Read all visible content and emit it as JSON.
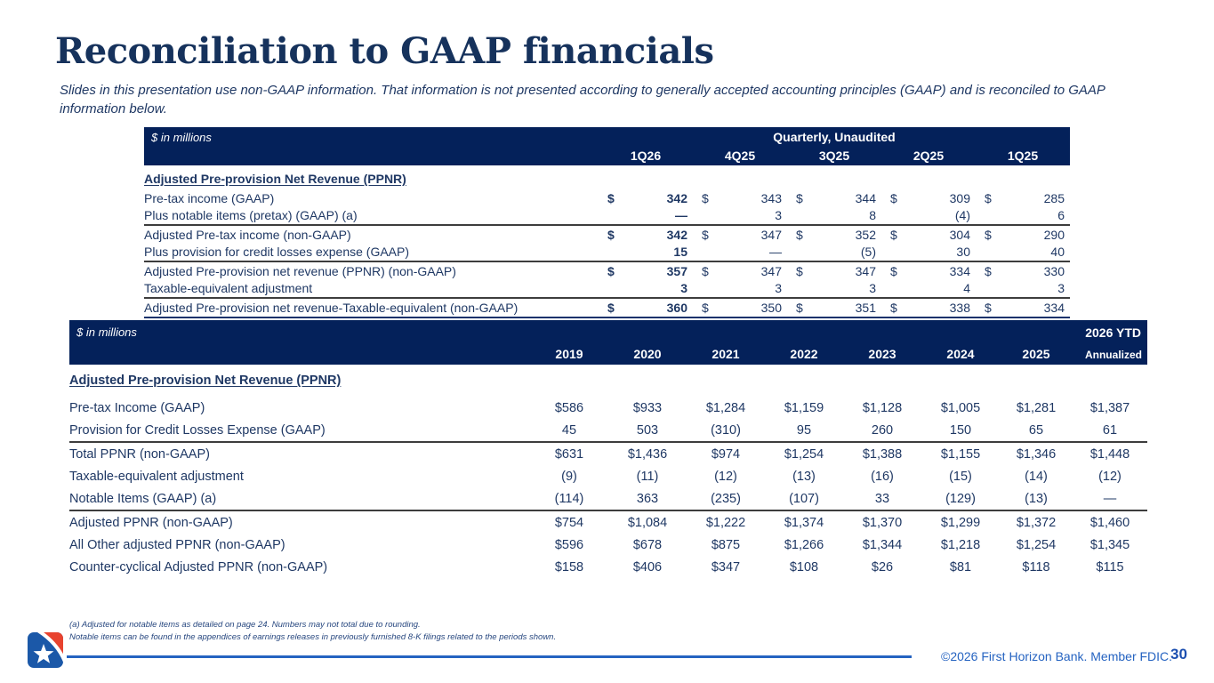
{
  "slide": {
    "title": "Reconciliation to GAAP financials",
    "subtitle": "Slides in this presentation use non-GAAP information. That information is not presented according to generally accepted accounting principles (GAAP) and is reconciled to GAAP information below."
  },
  "colors": {
    "header_navy": "#04215a",
    "body_text_navy": "#1f3864",
    "rule_dark": "#3d3d3d",
    "footer_blue": "#2563c1",
    "logo_blue": "#1b58a8",
    "logo_red": "#e8432f"
  },
  "quarterly_table": {
    "units_label": "$ in millions",
    "banner": "Quarterly, Unaudited",
    "columns": [
      "1Q26",
      "4Q25",
      "3Q25",
      "2Q25",
      "1Q25"
    ],
    "section_heading": "Adjusted Pre-provision Net Revenue (PPNR)",
    "rows": [
      {
        "label": "Pre-tax income (GAAP)",
        "dollar": true,
        "values": [
          "342",
          "343",
          "344",
          "309",
          "285"
        ],
        "rule": "none"
      },
      {
        "label": "Plus notable items (pretax) (GAAP) (a)",
        "dollar": false,
        "values": [
          "—",
          "3",
          "8",
          "(4)",
          "6"
        ],
        "rule": "thick"
      },
      {
        "label": "Adjusted Pre-tax income (non-GAAP)",
        "dollar": true,
        "values": [
          "342",
          "347",
          "352",
          "304",
          "290"
        ],
        "rule": "none"
      },
      {
        "label": "Plus provision for credit losses expense (GAAP)",
        "dollar": false,
        "values": [
          "15",
          "—",
          "(5)",
          "30",
          "40"
        ],
        "rule": "thick"
      },
      {
        "label": "Adjusted Pre-provision net revenue (PPNR) (non-GAAP)",
        "dollar": true,
        "values": [
          "357",
          "347",
          "347",
          "334",
          "330"
        ],
        "rule": "none"
      },
      {
        "label": "Taxable-equivalent adjustment",
        "dollar": false,
        "values": [
          "3",
          "3",
          "3",
          "4",
          "3"
        ],
        "rule": "thick"
      },
      {
        "label": "Adjusted Pre-provision net revenue-Taxable-equivalent (non-GAAP)",
        "dollar": true,
        "values": [
          "360",
          "350",
          "351",
          "338",
          "334"
        ],
        "rule": "navy"
      }
    ]
  },
  "annual_table": {
    "units_label": "$ in millions",
    "ytd_header_line1": "2026 YTD",
    "ytd_header_line2": "Annualized",
    "columns": [
      "2019",
      "2020",
      "2021",
      "2022",
      "2023",
      "2024",
      "2025"
    ],
    "section_heading": "Adjusted Pre-provision Net Revenue (PPNR)",
    "rows": [
      {
        "label": "Pre-tax Income (GAAP)",
        "values": [
          "$586",
          "$933",
          "$1,284",
          "$1,159",
          "$1,128",
          "$1,005",
          "$1,281",
          "$1,387"
        ],
        "rule": "none"
      },
      {
        "label": "Provision for Credit Losses Expense (GAAP)",
        "values": [
          "45",
          "503",
          "(310)",
          "95",
          "260",
          "150",
          "65",
          "61"
        ],
        "rule": "thick"
      },
      {
        "label": "Total PPNR (non-GAAP)",
        "values": [
          "$631",
          "$1,436",
          "$974",
          "$1,254",
          "$1,388",
          "$1,155",
          "$1,346",
          "$1,448"
        ],
        "rule": "none"
      },
      {
        "label": "Taxable-equivalent adjustment",
        "values": [
          "(9)",
          "(11)",
          "(12)",
          "(13)",
          "(16)",
          "(15)",
          "(14)",
          "(12)"
        ],
        "rule": "none"
      },
      {
        "label": "Notable Items (GAAP) (a)",
        "values": [
          "(114)",
          "363",
          "(235)",
          "(107)",
          "33",
          "(129)",
          "(13)",
          "—"
        ],
        "rule": "thick"
      },
      {
        "label": "Adjusted PPNR (non-GAAP)",
        "values": [
          "$754",
          "$1,084",
          "$1,222",
          "$1,374",
          "$1,370",
          "$1,299",
          "$1,372",
          "$1,460"
        ],
        "rule": "none"
      },
      {
        "label": "All Other adjusted PPNR (non-GAAP)",
        "values": [
          "$596",
          "$678",
          "$875",
          "$1,266",
          "$1,344",
          "$1,218",
          "$1,254",
          "$1,345"
        ],
        "rule": "none"
      },
      {
        "label": "Counter-cyclical Adjusted PPNR (non-GAAP)",
        "values": [
          "$158",
          "$406",
          "$347",
          "$108",
          "$26",
          "$81",
          "$118",
          "$115"
        ],
        "rule": "none"
      }
    ]
  },
  "footnotes": [
    "(a) Adjusted for notable items as detailed on page 24. Numbers may not total due to rounding.",
    "Notable items can be found in the appendices of earnings releases in previously furnished 8-K filings related to the periods shown."
  ],
  "footer": {
    "copyright": "©2026 First Horizon Bank. Member FDIC.",
    "page_number": "30"
  }
}
